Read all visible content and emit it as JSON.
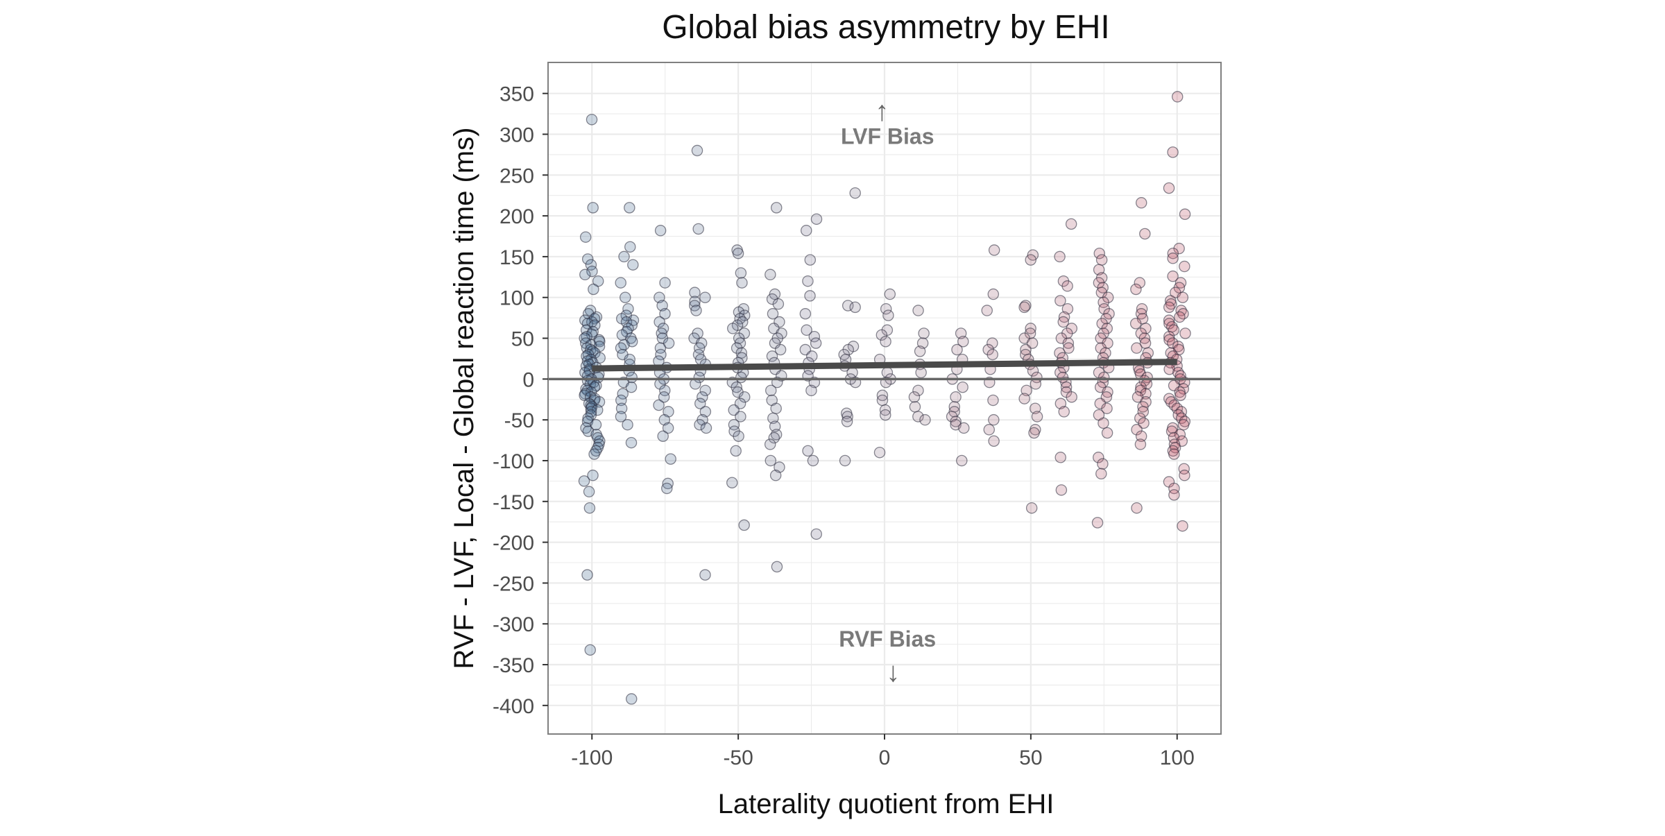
{
  "chart_data": {
    "type": "scatter",
    "title": "Global bias asymmetry by EHI",
    "xlabel": "Laterality quotient from EHI",
    "ylabel": "RVF - LVF, Local - Global reaction time (ms)",
    "xlim": [
      -115,
      115
    ],
    "ylim": [
      -435,
      388
    ],
    "xticks": [
      -100,
      -50,
      0,
      50,
      100
    ],
    "xtick_labels": [
      "-100",
      "-50",
      "0",
      "50",
      "100"
    ],
    "yticks": [
      350,
      300,
      250,
      200,
      150,
      100,
      50,
      0,
      -50,
      -100,
      -150,
      -200,
      -250,
      -300,
      -350,
      -400
    ],
    "ytick_labels": [
      "350",
      "300",
      "250",
      "200",
      "150",
      "100",
      "50",
      "0",
      "-50",
      "-100",
      "-150",
      "-200",
      "-250",
      "-300",
      "-350",
      "-400"
    ],
    "grid": true,
    "reference_line_y": 0,
    "trend_line": {
      "x": [
        -100,
        100
      ],
      "y": [
        13,
        21
      ]
    },
    "annotations": [
      {
        "text": "LVF Bias",
        "x": 1,
        "y": 288,
        "arrow": "↑"
      },
      {
        "text": "RVF Bias",
        "x": 1,
        "y": -328,
        "arrow": "↓"
      }
    ],
    "colors": {
      "left_handed": "#4a6f95",
      "neutral": "#9a8a9a",
      "right_handed": "#c05a6a",
      "trend": "#4a4a4a",
      "reference": "#666666",
      "grid": "#ebebeb",
      "panel_border": "#7f7f7f"
    },
    "color_scale": "diverging by x: left-handed blue, ambidextrous grey-purple, right-handed red",
    "groups": [
      {
        "x": -100,
        "y": [
          318,
          210,
          174,
          147,
          140,
          132,
          128,
          120,
          110,
          84,
          80,
          76,
          74,
          72,
          70,
          68,
          66,
          60,
          58,
          55,
          52,
          50,
          48,
          46,
          44,
          42,
          40,
          38,
          36,
          34,
          32,
          30,
          28,
          26,
          24,
          22,
          20,
          18,
          16,
          14,
          12,
          10,
          8,
          6,
          4,
          2,
          0,
          -2,
          -4,
          -6,
          -8,
          -10,
          -12,
          -14,
          -16,
          -18,
          -20,
          -22,
          -24,
          -26,
          -28,
          -30,
          -32,
          -34,
          -36,
          -38,
          -40,
          -44,
          -48,
          -52,
          -56,
          -60,
          -64,
          -68,
          -72,
          -76,
          -80,
          -84,
          -88,
          -92,
          -118,
          -125,
          -138,
          -158,
          -240,
          -332
        ]
      },
      {
        "x": -88,
        "y": 210,
        "_": "single"
      },
      {
        "x": -88,
        "y": [
          162,
          150,
          140,
          118,
          100,
          86,
          78,
          74,
          72,
          70,
          66,
          62,
          58,
          54,
          50,
          46,
          42,
          38,
          30,
          24,
          18,
          10,
          2,
          -4,
          -10,
          -18,
          -26,
          -36,
          -46,
          -56,
          -78,
          -392
        ]
      },
      {
        "x": -75,
        "y": [
          182,
          118,
          100,
          90,
          80,
          70,
          62,
          56,
          50,
          44,
          38,
          30,
          22,
          14,
          8,
          0,
          -6,
          -14,
          -22,
          -32,
          -40,
          -50,
          -60,
          -70,
          -98,
          -128,
          -134
        ]
      },
      {
        "x": -63,
        "y": [
          280,
          184,
          106,
          100,
          95,
          90,
          84,
          56,
          50,
          44,
          38,
          30,
          24,
          18,
          10,
          2,
          -6,
          -14,
          -22,
          -30,
          -40,
          -50,
          -56,
          -60,
          -240
        ]
      },
      {
        "x": -50,
        "y": [
          158,
          154,
          130,
          118,
          86,
          82,
          78,
          74,
          70,
          66,
          62,
          56,
          50,
          44,
          38,
          32,
          26,
          20,
          14,
          8,
          2,
          -4,
          -10,
          -16,
          -22,
          -30,
          -38,
          -46,
          -56,
          -64,
          -70,
          -88,
          -127,
          -179
        ]
      },
      {
        "x": -37,
        "y": [
          210,
          128,
          104,
          98,
          92,
          80,
          70,
          62,
          56,
          50,
          44,
          36,
          28,
          20,
          12,
          4,
          -4,
          -14,
          -26,
          -36,
          -48,
          -58,
          -68,
          -72,
          -80,
          -100,
          -108,
          -118,
          -230
        ]
      },
      {
        "x": -25,
        "y": [
          196,
          182,
          146,
          120,
          102,
          80,
          60,
          52,
          44,
          36,
          28,
          20,
          12,
          4,
          -4,
          -14,
          -88,
          -100,
          -190
        ]
      },
      {
        "x": -12,
        "y": [
          228,
          90,
          88,
          40,
          36,
          30,
          24,
          16,
          8,
          0,
          -4,
          -42,
          -46,
          -52,
          -100
        ]
      },
      {
        "x": 0,
        "y": [
          104,
          86,
          78,
          60,
          54,
          46,
          24,
          8,
          0,
          -4,
          -20,
          -26,
          -38,
          -44,
          -90
        ]
      },
      {
        "x": 12,
        "y": [
          84,
          56,
          44,
          34,
          18,
          8,
          -14,
          -22,
          -34,
          -46,
          -50
        ]
      },
      {
        "x": 25,
        "y": [
          56,
          46,
          36,
          24,
          12,
          0,
          -10,
          -22,
          -34,
          -40,
          -46,
          -52,
          -56,
          -60,
          -100
        ]
      },
      {
        "x": 37,
        "y": [
          158,
          104,
          84,
          44,
          36,
          30,
          12,
          -4,
          -26,
          -50,
          -62,
          -76
        ]
      },
      {
        "x": 50,
        "y": [
          152,
          146,
          90,
          88,
          62,
          56,
          50,
          44,
          36,
          30,
          24,
          18,
          10,
          2,
          -6,
          -14,
          -24,
          -36,
          -46,
          -62,
          -66,
          -158
        ]
      },
      {
        "x": 62,
        "y": [
          190,
          150,
          120,
          114,
          96,
          86,
          76,
          70,
          62,
          56,
          50,
          44,
          38,
          32,
          26,
          20,
          14,
          8,
          2,
          -4,
          -10,
          -16,
          -22,
          -30,
          -40,
          -96,
          -136
        ]
      },
      {
        "x": 75,
        "y": [
          154,
          146,
          134,
          124,
          118,
          112,
          106,
          100,
          94,
          86,
          80,
          74,
          68,
          62,
          56,
          50,
          44,
          38,
          32,
          26,
          20,
          14,
          8,
          2,
          -4,
          -10,
          -16,
          -22,
          -30,
          -36,
          -44,
          -54,
          -66,
          -96,
          -104,
          -116,
          -176
        ]
      },
      {
        "x": 88,
        "y": [
          216,
          178,
          118,
          110,
          86,
          80,
          74,
          68,
          62,
          56,
          50,
          44,
          38,
          32,
          26,
          20,
          14,
          10,
          6,
          2,
          -2,
          -6,
          -10,
          -14,
          -18,
          -22,
          -28,
          -34,
          -40,
          -48,
          -54,
          -62,
          -70,
          -80,
          -158
        ]
      },
      {
        "x": 100,
        "y": [
          346,
          278,
          234,
          202,
          160,
          154,
          148,
          138,
          126,
          118,
          112,
          106,
          100,
          96,
          92,
          88,
          84,
          80,
          76,
          72,
          68,
          64,
          60,
          56,
          52,
          48,
          44,
          40,
          36,
          32,
          28,
          24,
          20,
          16,
          12,
          8,
          4,
          0,
          -4,
          -8,
          -12,
          -16,
          -20,
          -24,
          -28,
          -32,
          -36,
          -40,
          -44,
          -48,
          -52,
          -56,
          -60,
          -64,
          -68,
          -72,
          -76,
          -80,
          -84,
          -88,
          -92,
          -110,
          -118,
          -126,
          -134,
          -142,
          -180
        ]
      }
    ]
  }
}
